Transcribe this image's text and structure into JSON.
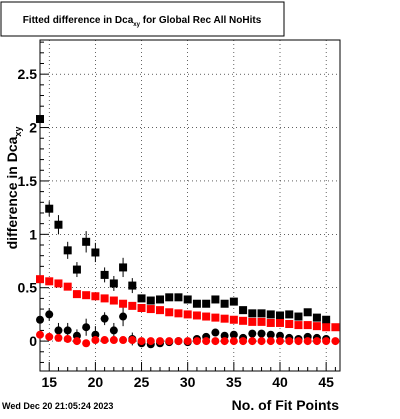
{
  "chart_data": {
    "type": "scatter",
    "title": "Fitted difference in Dca",
    "title_sub": "xy",
    "title_rest": " for Global Rec All NoHits",
    "xlabel": "No. of Fit Points",
    "ylabel": "difference in Dca",
    "ylabel_sub": "xy",
    "xlim": [
      14,
      46.5
    ],
    "ylim": [
      -0.28,
      2.82
    ],
    "xticks": [
      15,
      20,
      25,
      30,
      35,
      40,
      45
    ],
    "xtick_labels": [
      "15",
      "20",
      "25",
      "30",
      "35",
      "40",
      "45"
    ],
    "yticks": [
      0,
      0.5,
      1,
      1.5,
      2,
      2.5
    ],
    "ytick_labels": [
      "0",
      "0.5",
      "1",
      "1.5",
      "2",
      "2.5"
    ],
    "grid": true,
    "legend": "none",
    "series": [
      {
        "marker": "square",
        "color": "#000000",
        "points": [
          {
            "x": 14,
            "y": 2.08,
            "err": 0.05
          },
          {
            "x": 15,
            "y": 1.24,
            "err": 0.07
          },
          {
            "x": 16,
            "y": 1.09,
            "err": 0.09
          },
          {
            "x": 17,
            "y": 0.85,
            "err": 0.08
          },
          {
            "x": 18,
            "y": 0.67,
            "err": 0.07
          },
          {
            "x": 19,
            "y": 0.93,
            "err": 0.1
          },
          {
            "x": 20,
            "y": 0.83,
            "err": 0.09
          },
          {
            "x": 21,
            "y": 0.62,
            "err": 0.07
          },
          {
            "x": 22,
            "y": 0.54,
            "err": 0.07
          },
          {
            "x": 23,
            "y": 0.69,
            "err": 0.09
          },
          {
            "x": 24,
            "y": 0.52,
            "err": 0.07
          },
          {
            "x": 25,
            "y": 0.4,
            "err": 0.03
          },
          {
            "x": 26,
            "y": 0.38,
            "err": 0.03
          },
          {
            "x": 27,
            "y": 0.39,
            "err": 0.03
          },
          {
            "x": 28,
            "y": 0.41,
            "err": 0.03
          },
          {
            "x": 29,
            "y": 0.41,
            "err": 0.03
          },
          {
            "x": 30,
            "y": 0.39,
            "err": 0.02
          },
          {
            "x": 31,
            "y": 0.35,
            "err": 0.02
          },
          {
            "x": 32,
            "y": 0.35,
            "err": 0.02
          },
          {
            "x": 33,
            "y": 0.39,
            "err": 0.02
          },
          {
            "x": 34,
            "y": 0.35,
            "err": 0.02
          },
          {
            "x": 35,
            "y": 0.37,
            "err": 0.02
          },
          {
            "x": 36,
            "y": 0.29,
            "err": 0.02
          },
          {
            "x": 37,
            "y": 0.26,
            "err": 0.02
          },
          {
            "x": 38,
            "y": 0.26,
            "err": 0.02
          },
          {
            "x": 39,
            "y": 0.25,
            "err": 0.02
          },
          {
            "x": 40,
            "y": 0.24,
            "err": 0.02
          },
          {
            "x": 41,
            "y": 0.25,
            "err": 0.02
          },
          {
            "x": 42,
            "y": 0.23,
            "err": 0.02
          },
          {
            "x": 43,
            "y": 0.27,
            "err": 0.02
          },
          {
            "x": 44,
            "y": 0.22,
            "err": 0.02
          },
          {
            "x": 45,
            "y": 0.2,
            "err": 0.02
          }
        ]
      },
      {
        "marker": "circle",
        "color": "#000000",
        "points": [
          {
            "x": 14,
            "y": 0.2,
            "err": 0.05
          },
          {
            "x": 15,
            "y": 0.25,
            "err": 0.06
          },
          {
            "x": 16,
            "y": 0.1,
            "err": 0.07
          },
          {
            "x": 17,
            "y": 0.1,
            "err": 0.07
          },
          {
            "x": 18,
            "y": 0.05,
            "err": 0.06
          },
          {
            "x": 19,
            "y": 0.13,
            "err": 0.08
          },
          {
            "x": 20,
            "y": 0.06,
            "err": 0.08
          },
          {
            "x": 21,
            "y": 0.21,
            "err": 0.06
          },
          {
            "x": 22,
            "y": 0.1,
            "err": 0.07
          },
          {
            "x": 23,
            "y": 0.23,
            "err": 0.09
          },
          {
            "x": 24,
            "y": 0.02,
            "err": 0.06
          },
          {
            "x": 25,
            "y": -0.02,
            "err": 0.03
          },
          {
            "x": 26,
            "y": -0.03,
            "err": 0.03
          },
          {
            "x": 27,
            "y": -0.02,
            "err": 0.03
          },
          {
            "x": 28,
            "y": -0.01,
            "err": 0.03
          },
          {
            "x": 29,
            "y": 0.0,
            "err": 0.03
          },
          {
            "x": 30,
            "y": -0.01,
            "err": 0.02
          },
          {
            "x": 31,
            "y": 0.02,
            "err": 0.02
          },
          {
            "x": 32,
            "y": 0.04,
            "err": 0.02
          },
          {
            "x": 33,
            "y": 0.08,
            "err": 0.02
          },
          {
            "x": 34,
            "y": 0.05,
            "err": 0.02
          },
          {
            "x": 35,
            "y": 0.06,
            "err": 0.02
          },
          {
            "x": 36,
            "y": 0.03,
            "err": 0.02
          },
          {
            "x": 37,
            "y": 0.07,
            "err": 0.02
          },
          {
            "x": 38,
            "y": 0.07,
            "err": 0.02
          },
          {
            "x": 39,
            "y": 0.06,
            "err": 0.02
          },
          {
            "x": 40,
            "y": 0.05,
            "err": 0.02
          },
          {
            "x": 41,
            "y": 0.03,
            "err": 0.02
          },
          {
            "x": 42,
            "y": 0.02,
            "err": 0.02
          },
          {
            "x": 43,
            "y": 0.04,
            "err": 0.02
          },
          {
            "x": 44,
            "y": 0.03,
            "err": 0.02
          },
          {
            "x": 45,
            "y": 0.02,
            "err": 0.02
          }
        ]
      },
      {
        "marker": "square",
        "color": "#ff0000",
        "points": [
          {
            "x": 14,
            "y": 0.58
          },
          {
            "x": 15,
            "y": 0.56
          },
          {
            "x": 16,
            "y": 0.54
          },
          {
            "x": 17,
            "y": 0.51
          },
          {
            "x": 18,
            "y": 0.44
          },
          {
            "x": 19,
            "y": 0.43
          },
          {
            "x": 20,
            "y": 0.42
          },
          {
            "x": 21,
            "y": 0.4
          },
          {
            "x": 22,
            "y": 0.38
          },
          {
            "x": 23,
            "y": 0.35
          },
          {
            "x": 24,
            "y": 0.33
          },
          {
            "x": 25,
            "y": 0.31
          },
          {
            "x": 26,
            "y": 0.3
          },
          {
            "x": 27,
            "y": 0.29
          },
          {
            "x": 28,
            "y": 0.27
          },
          {
            "x": 29,
            "y": 0.26
          },
          {
            "x": 30,
            "y": 0.25
          },
          {
            "x": 31,
            "y": 0.24
          },
          {
            "x": 32,
            "y": 0.23
          },
          {
            "x": 33,
            "y": 0.22
          },
          {
            "x": 34,
            "y": 0.21
          },
          {
            "x": 35,
            "y": 0.2
          },
          {
            "x": 36,
            "y": 0.19
          },
          {
            "x": 37,
            "y": 0.18
          },
          {
            "x": 38,
            "y": 0.18
          },
          {
            "x": 39,
            "y": 0.17
          },
          {
            "x": 40,
            "y": 0.17
          },
          {
            "x": 41,
            "y": 0.16
          },
          {
            "x": 42,
            "y": 0.15
          },
          {
            "x": 43,
            "y": 0.15
          },
          {
            "x": 44,
            "y": 0.14
          },
          {
            "x": 45,
            "y": 0.13
          },
          {
            "x": 46,
            "y": 0.13
          }
        ]
      },
      {
        "marker": "circle",
        "color": "#ff0000",
        "points": [
          {
            "x": 14,
            "y": 0.06
          },
          {
            "x": 15,
            "y": 0.04
          },
          {
            "x": 16,
            "y": 0.03
          },
          {
            "x": 17,
            "y": 0.02
          },
          {
            "x": 18,
            "y": 0.0
          },
          {
            "x": 19,
            "y": -0.02
          },
          {
            "x": 20,
            "y": 0.01
          },
          {
            "x": 21,
            "y": 0.01
          },
          {
            "x": 22,
            "y": 0.01
          },
          {
            "x": 23,
            "y": 0.01
          },
          {
            "x": 24,
            "y": 0.01
          },
          {
            "x": 25,
            "y": 0.0
          },
          {
            "x": 26,
            "y": 0.0
          },
          {
            "x": 27,
            "y": 0.0
          },
          {
            "x": 28,
            "y": 0.0
          },
          {
            "x": 29,
            "y": 0.0
          },
          {
            "x": 30,
            "y": 0.0
          },
          {
            "x": 31,
            "y": 0.0
          },
          {
            "x": 32,
            "y": 0.0
          },
          {
            "x": 33,
            "y": 0.0
          },
          {
            "x": 34,
            "y": 0.0
          },
          {
            "x": 35,
            "y": 0.0
          },
          {
            "x": 36,
            "y": 0.0
          },
          {
            "x": 37,
            "y": 0.0
          },
          {
            "x": 38,
            "y": 0.0
          },
          {
            "x": 39,
            "y": 0.0
          },
          {
            "x": 40,
            "y": 0.0
          },
          {
            "x": 41,
            "y": 0.0
          },
          {
            "x": 42,
            "y": 0.0
          },
          {
            "x": 43,
            "y": 0.0
          },
          {
            "x": 44,
            "y": 0.0
          },
          {
            "x": 45,
            "y": 0.0
          },
          {
            "x": 46,
            "y": 0.0
          }
        ]
      }
    ]
  },
  "footer": {
    "timestamp": "Wed Dec 20 21:05:24 2023"
  }
}
